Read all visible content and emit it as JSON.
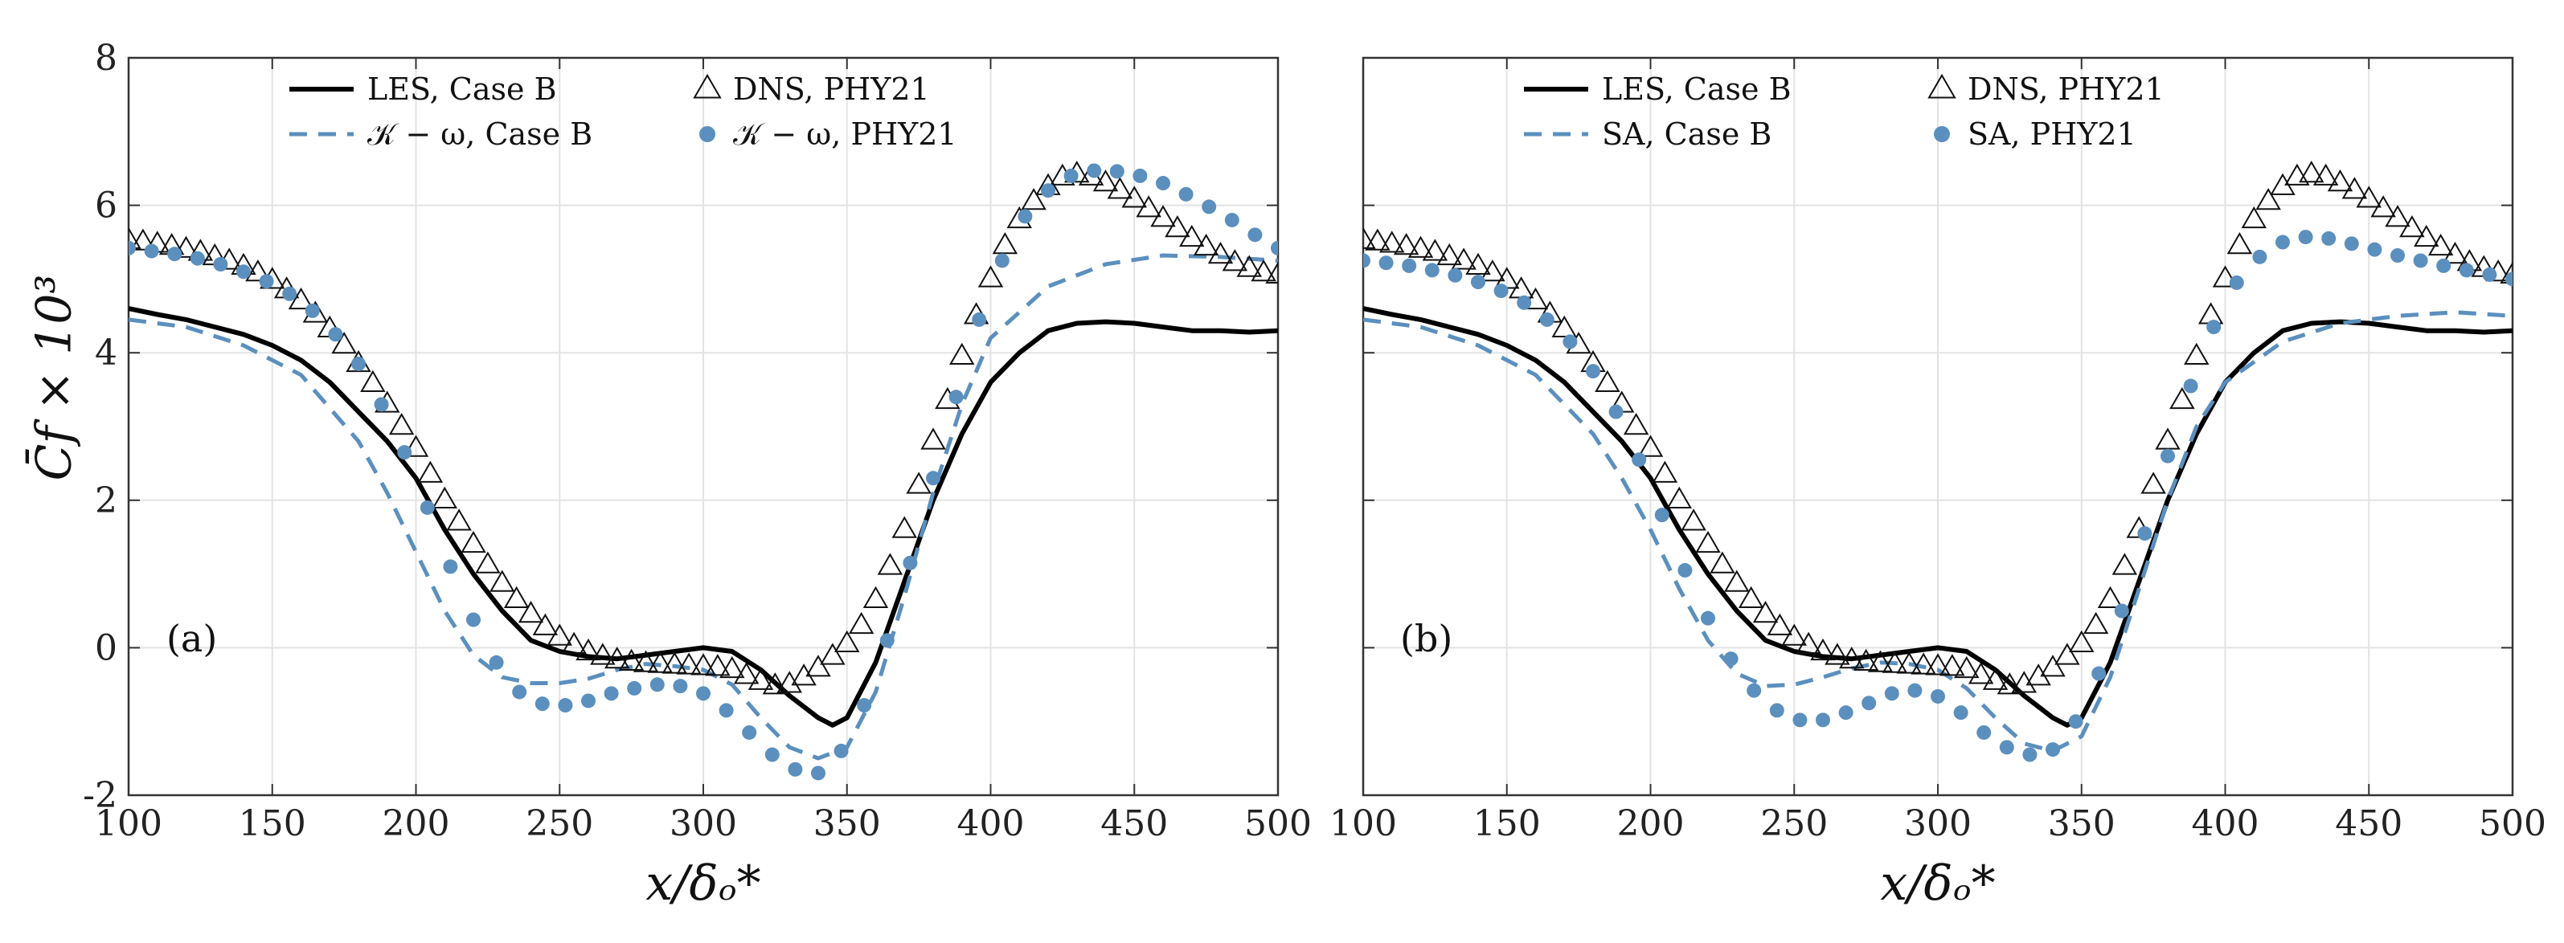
{
  "chart_data": [
    {
      "type": "line",
      "panel_label": "(a)",
      "xlabel": "x/δₒ*",
      "ylabel": "C̄f × 10³",
      "xlim": [
        100,
        500
      ],
      "ylim": [
        -2,
        8
      ],
      "xticks": [
        100,
        150,
        200,
        250,
        300,
        350,
        400,
        450,
        500
      ],
      "yticks": [
        -2,
        0,
        2,
        4,
        6,
        8
      ],
      "grid": true,
      "legend_position": "top",
      "series": [
        {
          "name": "LES, Case B",
          "style": "solid",
          "color": "#000000",
          "x": [
            100,
            110,
            120,
            130,
            140,
            150,
            160,
            170,
            180,
            190,
            200,
            210,
            220,
            230,
            240,
            250,
            260,
            270,
            280,
            290,
            300,
            310,
            320,
            330,
            340,
            345,
            350,
            360,
            370,
            380,
            390,
            400,
            410,
            420,
            430,
            440,
            450,
            460,
            470,
            480,
            490,
            500
          ],
          "y": [
            4.6,
            4.52,
            4.45,
            4.35,
            4.25,
            4.1,
            3.9,
            3.6,
            3.2,
            2.8,
            2.3,
            1.6,
            1.0,
            0.5,
            0.1,
            -0.05,
            -0.12,
            -0.15,
            -0.1,
            -0.05,
            0.0,
            -0.05,
            -0.3,
            -0.65,
            -0.95,
            -1.05,
            -0.95,
            -0.2,
            0.9,
            2.0,
            2.9,
            3.6,
            4.0,
            4.3,
            4.4,
            4.42,
            4.4,
            4.35,
            4.3,
            4.3,
            4.28,
            4.3
          ]
        },
        {
          "name": "𝒦 − ω, Case B",
          "style": "dashed",
          "color": "#5b8fbe",
          "x": [
            100,
            120,
            140,
            160,
            180,
            190,
            200,
            210,
            220,
            230,
            240,
            250,
            260,
            270,
            280,
            290,
            300,
            310,
            320,
            330,
            340,
            350,
            360,
            370,
            380,
            390,
            400,
            420,
            440,
            460,
            480,
            500
          ],
          "y": [
            4.45,
            4.35,
            4.1,
            3.7,
            2.8,
            2.1,
            1.3,
            0.5,
            -0.1,
            -0.4,
            -0.48,
            -0.48,
            -0.42,
            -0.3,
            -0.22,
            -0.25,
            -0.3,
            -0.5,
            -0.95,
            -1.35,
            -1.5,
            -1.35,
            -0.6,
            0.7,
            2.1,
            3.3,
            4.2,
            4.9,
            5.2,
            5.32,
            5.3,
            5.25
          ]
        },
        {
          "name": "DNS, PHY21",
          "style": "triangle",
          "color": "#111111",
          "x": [
            100,
            105,
            110,
            115,
            120,
            125,
            130,
            135,
            140,
            145,
            150,
            155,
            160,
            165,
            170,
            175,
            180,
            185,
            190,
            195,
            200,
            205,
            210,
            215,
            220,
            225,
            230,
            235,
            240,
            245,
            250,
            255,
            260,
            265,
            270,
            275,
            280,
            285,
            290,
            295,
            300,
            305,
            310,
            315,
            320,
            325,
            330,
            335,
            340,
            345,
            350,
            355,
            360,
            365,
            370,
            375,
            380,
            385,
            390,
            395,
            400,
            405,
            410,
            415,
            420,
            425,
            430,
            435,
            440,
            445,
            450,
            455,
            460,
            465,
            470,
            475,
            480,
            485,
            490,
            495,
            500
          ],
          "y": [
            5.52,
            5.5,
            5.47,
            5.44,
            5.4,
            5.36,
            5.3,
            5.24,
            5.17,
            5.08,
            4.98,
            4.85,
            4.7,
            4.52,
            4.32,
            4.1,
            3.85,
            3.58,
            3.3,
            3.0,
            2.7,
            2.35,
            2.0,
            1.7,
            1.4,
            1.12,
            0.87,
            0.65,
            0.45,
            0.28,
            0.14,
            0.03,
            -0.06,
            -0.12,
            -0.17,
            -0.2,
            -0.22,
            -0.23,
            -0.24,
            -0.25,
            -0.26,
            -0.27,
            -0.3,
            -0.38,
            -0.46,
            -0.52,
            -0.5,
            -0.4,
            -0.28,
            -0.12,
            0.05,
            0.3,
            0.65,
            1.1,
            1.6,
            2.2,
            2.8,
            3.35,
            3.95,
            4.5,
            5.0,
            5.45,
            5.8,
            6.05,
            6.25,
            6.38,
            6.42,
            6.38,
            6.3,
            6.2,
            6.08,
            5.95,
            5.82,
            5.68,
            5.55,
            5.43,
            5.32,
            5.22,
            5.14,
            5.08,
            5.05
          ]
        },
        {
          "name": "𝒦 − ω, PHY21",
          "style": "circle",
          "color": "#5b8fbe",
          "x": [
            100,
            108,
            116,
            124,
            132,
            140,
            148,
            156,
            164,
            172,
            180,
            188,
            196,
            204,
            212,
            220,
            228,
            236,
            244,
            252,
            260,
            268,
            276,
            284,
            292,
            300,
            308,
            316,
            324,
            332,
            340,
            348,
            356,
            364,
            372,
            380,
            388,
            396,
            404,
            412,
            420,
            428,
            436,
            444,
            452,
            460,
            468,
            476,
            484,
            492,
            500
          ],
          "y": [
            5.42,
            5.38,
            5.34,
            5.28,
            5.2,
            5.1,
            4.97,
            4.8,
            4.57,
            4.25,
            3.85,
            3.3,
            2.65,
            1.9,
            1.1,
            0.38,
            -0.2,
            -0.6,
            -0.76,
            -0.78,
            -0.72,
            -0.62,
            -0.55,
            -0.5,
            -0.52,
            -0.62,
            -0.85,
            -1.15,
            -1.45,
            -1.65,
            -1.7,
            -1.4,
            -0.78,
            0.1,
            1.15,
            2.3,
            3.4,
            4.45,
            5.25,
            5.85,
            6.2,
            6.4,
            6.47,
            6.46,
            6.4,
            6.3,
            6.15,
            5.98,
            5.8,
            5.6,
            5.42
          ]
        }
      ]
    },
    {
      "type": "line",
      "panel_label": "(b)",
      "xlabel": "x/δₒ*",
      "ylabel": "",
      "xlim": [
        100,
        500
      ],
      "ylim": [
        -2,
        8
      ],
      "xticks": [
        100,
        150,
        200,
        250,
        300,
        350,
        400,
        450,
        500
      ],
      "yticks": [
        -2,
        0,
        2,
        4,
        6,
        8
      ],
      "grid": true,
      "legend_position": "top",
      "series": [
        {
          "name": "LES, Case B",
          "style": "solid",
          "color": "#000000",
          "x": [
            100,
            110,
            120,
            130,
            140,
            150,
            160,
            170,
            180,
            190,
            200,
            210,
            220,
            230,
            240,
            250,
            260,
            270,
            280,
            290,
            300,
            310,
            320,
            330,
            340,
            345,
            350,
            360,
            370,
            380,
            390,
            400,
            410,
            420,
            430,
            440,
            450,
            460,
            470,
            480,
            490,
            500
          ],
          "y": [
            4.6,
            4.52,
            4.45,
            4.35,
            4.25,
            4.1,
            3.9,
            3.6,
            3.2,
            2.8,
            2.3,
            1.6,
            1.0,
            0.5,
            0.1,
            -0.05,
            -0.12,
            -0.15,
            -0.1,
            -0.05,
            0.0,
            -0.05,
            -0.3,
            -0.65,
            -0.95,
            -1.05,
            -0.95,
            -0.2,
            0.9,
            2.0,
            2.9,
            3.6,
            4.0,
            4.3,
            4.4,
            4.42,
            4.4,
            4.35,
            4.3,
            4.3,
            4.28,
            4.3
          ]
        },
        {
          "name": "SA, Case B",
          "style": "dashed",
          "color": "#5b8fbe",
          "x": [
            100,
            120,
            140,
            160,
            180,
            190,
            200,
            210,
            220,
            230,
            240,
            250,
            260,
            270,
            280,
            290,
            300,
            310,
            320,
            330,
            340,
            350,
            360,
            370,
            380,
            390,
            400,
            420,
            440,
            460,
            480,
            500
          ],
          "y": [
            4.45,
            4.35,
            4.1,
            3.7,
            2.9,
            2.3,
            1.6,
            0.8,
            0.1,
            -0.35,
            -0.52,
            -0.5,
            -0.4,
            -0.28,
            -0.2,
            -0.22,
            -0.3,
            -0.55,
            -0.95,
            -1.3,
            -1.4,
            -1.2,
            -0.4,
            0.8,
            2.0,
            3.0,
            3.6,
            4.15,
            4.4,
            4.5,
            4.55,
            4.5
          ]
        },
        {
          "name": "DNS, PHY21",
          "style": "triangle",
          "color": "#111111",
          "x": [
            100,
            105,
            110,
            115,
            120,
            125,
            130,
            135,
            140,
            145,
            150,
            155,
            160,
            165,
            170,
            175,
            180,
            185,
            190,
            195,
            200,
            205,
            210,
            215,
            220,
            225,
            230,
            235,
            240,
            245,
            250,
            255,
            260,
            265,
            270,
            275,
            280,
            285,
            290,
            295,
            300,
            305,
            310,
            315,
            320,
            325,
            330,
            335,
            340,
            345,
            350,
            355,
            360,
            365,
            370,
            375,
            380,
            385,
            390,
            395,
            400,
            405,
            410,
            415,
            420,
            425,
            430,
            435,
            440,
            445,
            450,
            455,
            460,
            465,
            470,
            475,
            480,
            485,
            490,
            495,
            500
          ],
          "y": [
            5.52,
            5.5,
            5.47,
            5.44,
            5.4,
            5.36,
            5.3,
            5.24,
            5.17,
            5.08,
            4.98,
            4.85,
            4.7,
            4.52,
            4.32,
            4.1,
            3.85,
            3.58,
            3.3,
            3.0,
            2.7,
            2.35,
            2.0,
            1.7,
            1.4,
            1.12,
            0.87,
            0.65,
            0.45,
            0.28,
            0.14,
            0.03,
            -0.06,
            -0.12,
            -0.17,
            -0.2,
            -0.22,
            -0.23,
            -0.24,
            -0.25,
            -0.26,
            -0.27,
            -0.3,
            -0.38,
            -0.46,
            -0.52,
            -0.5,
            -0.4,
            -0.28,
            -0.12,
            0.05,
            0.3,
            0.65,
            1.1,
            1.6,
            2.2,
            2.8,
            3.35,
            3.95,
            4.5,
            5.0,
            5.45,
            5.8,
            6.05,
            6.25,
            6.38,
            6.42,
            6.38,
            6.3,
            6.2,
            6.08,
            5.95,
            5.82,
            5.68,
            5.55,
            5.43,
            5.32,
            5.22,
            5.14,
            5.08,
            5.05
          ]
        },
        {
          "name": "SA, PHY21",
          "style": "circle",
          "color": "#5b8fbe",
          "x": [
            100,
            108,
            116,
            124,
            132,
            140,
            148,
            156,
            164,
            172,
            180,
            188,
            196,
            204,
            212,
            220,
            228,
            236,
            244,
            252,
            260,
            268,
            276,
            284,
            292,
            300,
            308,
            316,
            324,
            332,
            340,
            348,
            356,
            364,
            372,
            380,
            388,
            396,
            404,
            412,
            420,
            428,
            436,
            444,
            452,
            460,
            468,
            476,
            484,
            492,
            500
          ],
          "y": [
            5.25,
            5.22,
            5.18,
            5.12,
            5.05,
            4.96,
            4.84,
            4.68,
            4.45,
            4.15,
            3.75,
            3.2,
            2.55,
            1.8,
            1.05,
            0.4,
            -0.15,
            -0.58,
            -0.85,
            -0.98,
            -0.98,
            -0.88,
            -0.75,
            -0.62,
            -0.58,
            -0.66,
            -0.88,
            -1.15,
            -1.35,
            -1.45,
            -1.38,
            -1.0,
            -0.35,
            0.5,
            1.55,
            2.6,
            3.55,
            4.35,
            4.95,
            5.3,
            5.5,
            5.57,
            5.55,
            5.48,
            5.4,
            5.32,
            5.25,
            5.18,
            5.12,
            5.06,
            5.0
          ]
        }
      ]
    }
  ]
}
